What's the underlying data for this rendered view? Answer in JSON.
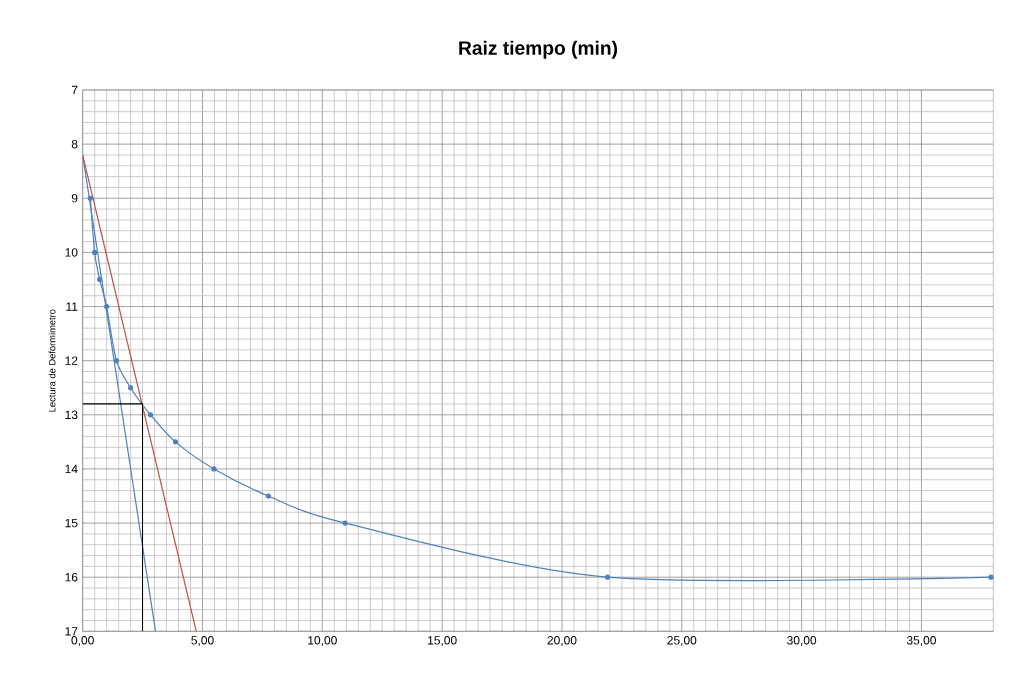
{
  "chart_data": {
    "type": "line",
    "title": "Raiz tiempo (min)",
    "ylabel": "Lectura de Deformimetro",
    "xlim": [
      0,
      38
    ],
    "ylim": [
      17,
      7
    ],
    "xticks": [
      {
        "value": 0,
        "label": "0,00"
      },
      {
        "value": 5,
        "label": "5,00"
      },
      {
        "value": 10,
        "label": "10,00"
      },
      {
        "value": 15,
        "label": "15,00"
      },
      {
        "value": 20,
        "label": "20,00"
      },
      {
        "value": 25,
        "label": "25,00"
      },
      {
        "value": 30,
        "label": "30,00"
      },
      {
        "value": 35,
        "label": "35,00"
      }
    ],
    "yticks": [
      7,
      8,
      9,
      10,
      11,
      12,
      13,
      14,
      15,
      16,
      17
    ],
    "grid": true,
    "series": [
      {
        "color": "#4f81bd",
        "marker": "circle",
        "x": [
          0.32,
          0.5,
          0.71,
          1.0,
          1.41,
          2.0,
          2.83,
          3.87,
          5.48,
          7.75,
          10.95,
          21.9,
          37.9
        ],
        "values": [
          9,
          10,
          10.5,
          11,
          12,
          12.5,
          13,
          13.5,
          14,
          14.5,
          15,
          16,
          16
        ]
      },
      {
        "color": "#4f81bd",
        "marker": "none",
        "x": [
          0,
          3.04
        ],
        "values": [
          8.2,
          17
        ]
      },
      {
        "color": "#c0504d",
        "marker": "none",
        "x": [
          0,
          4.74
        ],
        "values": [
          8.2,
          17
        ]
      },
      {
        "color": "#000000",
        "marker": "none",
        "x": [
          0,
          2.5,
          2.5
        ],
        "values": [
          12.8,
          12.8,
          17
        ]
      }
    ]
  }
}
